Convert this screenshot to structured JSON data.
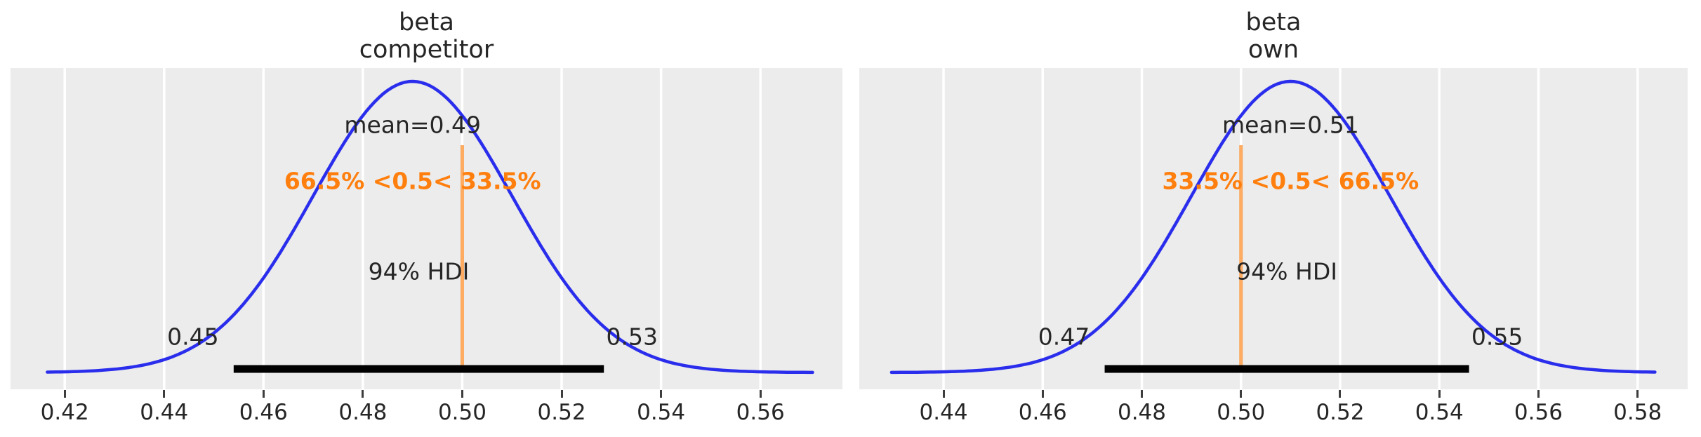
{
  "figure": {
    "kind": "arviz plot_posterior",
    "background": "#ffffff",
    "panel_background": "#ececec"
  },
  "colors": {
    "curve": "#2a2eec",
    "ref_line": "rgba(255,127,14,0.65)",
    "ref_text": "#ff7f0e",
    "hdi_bar": "#000000",
    "grid": "#ffffff",
    "text": "#262626",
    "tick": "#3d3d3d"
  },
  "chart_data": [
    {
      "type": "area",
      "subtype": "posterior-kde",
      "title_lines": [
        "beta",
        "competitor"
      ],
      "mean": 0.49,
      "mean_label": "mean=0.49",
      "ref_val": 0.5,
      "ref_text": "66.5% <0.5< 33.5%",
      "hdi_label": "94% HDI",
      "hdi_prob": 0.94,
      "hdi": [
        0.454,
        0.5285
      ],
      "hdi_bound_labels": [
        "0.45",
        "0.53"
      ],
      "sd": 0.02,
      "curve_range": [
        0.4165,
        0.5705
      ],
      "xlim": [
        0.4091,
        0.5765
      ],
      "xticks": [
        0.42,
        0.44,
        0.46,
        0.48,
        0.5,
        0.52,
        0.54,
        0.56
      ],
      "xtick_labels": [
        "0.42",
        "0.44",
        "0.46",
        "0.48",
        "0.50",
        "0.52",
        "0.54",
        "0.56"
      ],
      "grid": "vertical-white",
      "legend": "none"
    },
    {
      "type": "area",
      "subtype": "posterior-kde",
      "title_lines": [
        "beta",
        "own"
      ],
      "mean": 0.51,
      "mean_label": "mean=0.51",
      "ref_val": 0.5,
      "ref_text": "33.5% <0.5< 66.5%",
      "hdi_label": "94% HDI",
      "hdi_prob": 0.94,
      "hdi": [
        0.4725,
        0.546
      ],
      "hdi_bound_labels": [
        "0.47",
        "0.55"
      ],
      "sd": 0.02,
      "curve_range": [
        0.4295,
        0.5835
      ],
      "xlim": [
        0.423,
        0.5901
      ],
      "xticks": [
        0.44,
        0.46,
        0.48,
        0.5,
        0.52,
        0.54,
        0.56,
        0.58
      ],
      "xtick_labels": [
        "0.44",
        "0.46",
        "0.48",
        "0.50",
        "0.52",
        "0.54",
        "0.56",
        "0.58"
      ],
      "grid": "vertical-white",
      "legend": "none"
    }
  ]
}
